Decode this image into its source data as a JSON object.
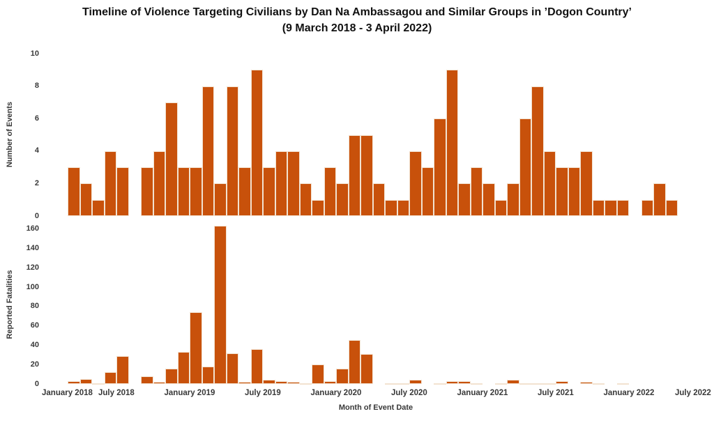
{
  "title": {
    "line1": "Timeline of Violence Targeting Civilians by Dan Na Ambassagou and Similar Groups in ’Dogon Country’",
    "line2": "(9 March 2018 - 3 April 2022)"
  },
  "colors": {
    "bar_fill": "#c8510b",
    "bar_border": "#f2e2d0",
    "text": "#383838",
    "title_text": "#111111"
  },
  "x_axis": {
    "title": "Month of Event Date",
    "tick_labels": [
      "January 2018",
      "July 2018",
      "January 2019",
      "July 2019",
      "January 2020",
      "July 2020",
      "January 2021",
      "July 2021",
      "January 2022",
      "July 2022"
    ]
  },
  "chart_data": [
    {
      "type": "bar",
      "panel": "top",
      "ylabel": "Number of Events",
      "ylim": [
        0,
        10
      ],
      "yticks": [
        0,
        2,
        4,
        6,
        8,
        10
      ],
      "grid": false,
      "categories": [
        "2018-03",
        "2018-04",
        "2018-05",
        "2018-06",
        "2018-07",
        "2018-08",
        "2018-09",
        "2018-10",
        "2018-11",
        "2018-12",
        "2019-01",
        "2019-02",
        "2019-03",
        "2019-04",
        "2019-05",
        "2019-06",
        "2019-07",
        "2019-08",
        "2019-09",
        "2019-10",
        "2019-11",
        "2019-12",
        "2020-01",
        "2020-02",
        "2020-03",
        "2020-04",
        "2020-05",
        "2020-06",
        "2020-07",
        "2020-08",
        "2020-09",
        "2020-10",
        "2020-11",
        "2020-12",
        "2021-01",
        "2021-02",
        "2021-03",
        "2021-04",
        "2021-05",
        "2021-06",
        "2021-07",
        "2021-08",
        "2021-09",
        "2021-10",
        "2021-11",
        "2021-12",
        "2022-01",
        "2022-02",
        "2022-03",
        "2022-04"
      ],
      "values": [
        3,
        2,
        1,
        4,
        3,
        0,
        3,
        4,
        7,
        3,
        3,
        8,
        2,
        8,
        3,
        9,
        3,
        4,
        4,
        2,
        1,
        3,
        2,
        5,
        5,
        2,
        1,
        1,
        4,
        3,
        6,
        9,
        2,
        3,
        2,
        1,
        2,
        6,
        8,
        4,
        3,
        3,
        4,
        1,
        1,
        1,
        0,
        1,
        2,
        1
      ]
    },
    {
      "type": "bar",
      "panel": "bottom",
      "ylabel": "Reported Fatalities",
      "ylim": [
        0,
        160
      ],
      "yticks": [
        0,
        20,
        40,
        60,
        80,
        100,
        120,
        140,
        160
      ],
      "grid": false,
      "categories": [
        "2018-03",
        "2018-04",
        "2018-05",
        "2018-06",
        "2018-07",
        "2018-08",
        "2018-09",
        "2018-10",
        "2018-11",
        "2018-12",
        "2019-01",
        "2019-02",
        "2019-03",
        "2019-04",
        "2019-05",
        "2019-06",
        "2019-07",
        "2019-08",
        "2019-09",
        "2019-10",
        "2019-11",
        "2019-12",
        "2020-01",
        "2020-02",
        "2020-03",
        "2020-04",
        "2020-05",
        "2020-06",
        "2020-07",
        "2020-08",
        "2020-09",
        "2020-10",
        "2020-11",
        "2020-12",
        "2021-01",
        "2021-02",
        "2021-03",
        "2021-04",
        "2021-05",
        "2021-06",
        "2021-07",
        "2021-08",
        "2021-09",
        "2021-10",
        "2021-11",
        "2021-12",
        "2022-01",
        "2022-02",
        "2022-03",
        "2022-04"
      ],
      "values": [
        3,
        5,
        1,
        12,
        29,
        0,
        8,
        2,
        16,
        33,
        74,
        18,
        163,
        32,
        2,
        36,
        4,
        3,
        2,
        1,
        20,
        3,
        16,
        45,
        31,
        0,
        1,
        1,
        4,
        0,
        1,
        3,
        3,
        1,
        0,
        1,
        4,
        1,
        1,
        1,
        3,
        0,
        2,
        1,
        0,
        1,
        0,
        0,
        0,
        0
      ]
    }
  ]
}
